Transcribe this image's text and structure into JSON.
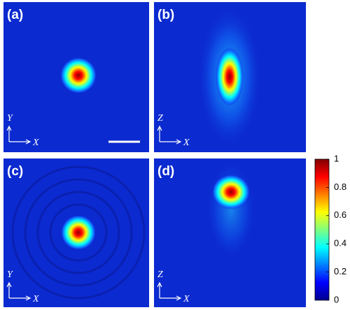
{
  "panels": [
    {
      "label": "(a)",
      "axes": [
        "Y",
        "X"
      ]
    },
    {
      "label": "(b)",
      "axes": [
        "Z",
        "X"
      ]
    },
    {
      "label": "(c)",
      "axes": [
        "Y",
        "X"
      ]
    },
    {
      "label": "(d)",
      "axes": [
        "Z",
        "X"
      ]
    }
  ],
  "colorbar": {
    "lim": [
      0,
      1
    ],
    "ticks": [
      0,
      0.2,
      0.4,
      0.6,
      0.8,
      1
    ]
  }
}
